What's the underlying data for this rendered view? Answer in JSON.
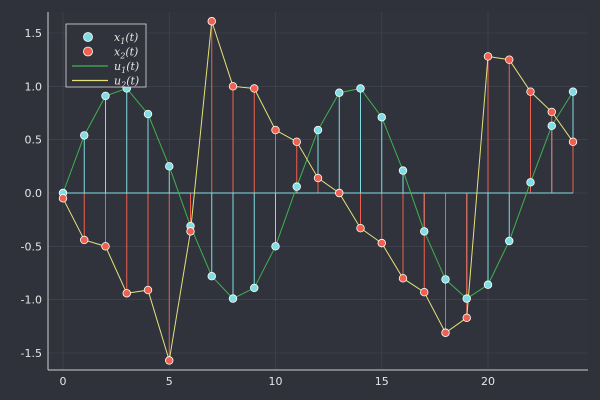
{
  "chart_data": {
    "type": "scatter",
    "title": "",
    "xlabel": "",
    "ylabel": "",
    "xlim": [
      -0.8,
      24.8
    ],
    "ylim": [
      -1.68,
      1.7
    ],
    "grid": true,
    "legend_position": "top-left",
    "x_ticks": [
      0,
      5,
      10,
      15,
      20
    ],
    "y_ticks": [
      -1.5,
      -1.0,
      -0.5,
      0.0,
      0.5,
      1.0,
      1.5
    ],
    "y_tick_labels": [
      "-1.5",
      "-1.0",
      "-0.5",
      "0.0",
      "0.5",
      "1.0",
      "1.5"
    ],
    "x": [
      0,
      1,
      2,
      3,
      4,
      5,
      6,
      7,
      8,
      9,
      10,
      11,
      12,
      13,
      14,
      15,
      16,
      17,
      18,
      19,
      20,
      21,
      22,
      23,
      24
    ],
    "series": [
      {
        "name": "x1(t)",
        "kind": "scatter+stem",
        "color": "#7fdde3",
        "values": [
          0.0,
          0.54,
          0.91,
          0.98,
          0.74,
          0.25,
          -0.31,
          -0.78,
          -0.99,
          -0.89,
          -0.5,
          0.06,
          0.59,
          0.94,
          0.98,
          0.71,
          0.21,
          -0.36,
          -0.81,
          -0.99,
          -0.86,
          -0.45,
          0.1,
          0.63,
          0.95
        ]
      },
      {
        "name": "x2(t)",
        "kind": "scatter+stem",
        "color": "#f0604f",
        "values": [
          -0.05,
          -0.44,
          -0.5,
          -0.94,
          -0.91,
          -1.57,
          -0.36,
          1.61,
          1.0,
          0.98,
          0.59,
          0.48,
          0.14,
          0.0,
          -0.33,
          -0.47,
          -0.8,
          -0.93,
          -1.31,
          -1.17,
          1.28,
          1.25,
          0.95,
          0.76,
          0.48
        ]
      },
      {
        "name": "u1(t)",
        "kind": "line",
        "color": "#3fb24f",
        "follows": 0
      },
      {
        "name": "u2(t)",
        "kind": "line",
        "color": "#e6e27a",
        "follows": 1
      }
    ],
    "legend": [
      {
        "base": "x",
        "sub": "1",
        "suffix": "(t)"
      },
      {
        "base": "x",
        "sub": "2",
        "suffix": "(t)"
      },
      {
        "base": "u",
        "sub": "1",
        "suffix": "(t)"
      },
      {
        "base": "u",
        "sub": "2",
        "suffix": "(t)"
      }
    ]
  }
}
